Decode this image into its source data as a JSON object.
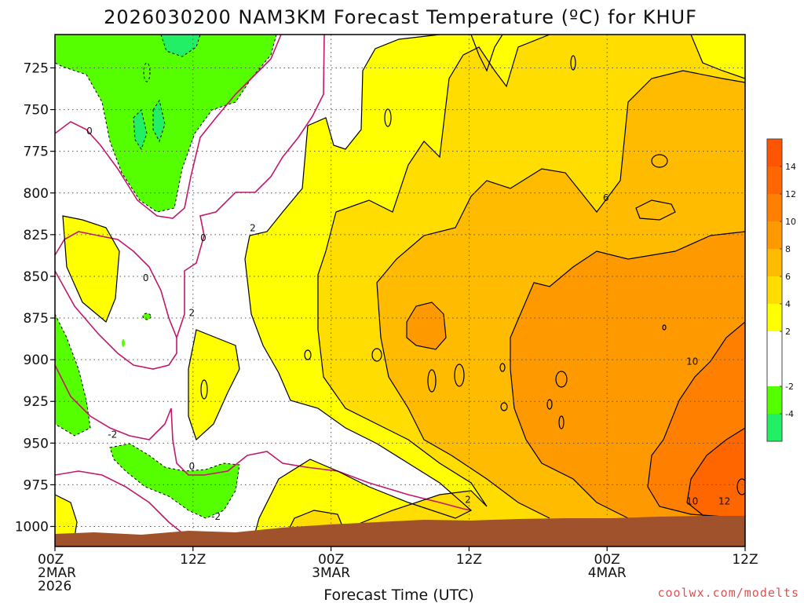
{
  "chart_data": {
    "type": "heatmap",
    "title": "2026030200 NAM3KM Forecast Temperature (ºC) for KHUF",
    "xlabel": "Forecast Time (UTC)",
    "ylabel": "",
    "credit": "coolwx.com/modelts",
    "x_range_hours": [
      0,
      60
    ],
    "y_range_hpa": [
      1012,
      705
    ],
    "y_ticks": [
      {
        "value": 725,
        "label": "725"
      },
      {
        "value": 750,
        "label": "750"
      },
      {
        "value": 775,
        "label": "775"
      },
      {
        "value": 800,
        "label": "800"
      },
      {
        "value": 825,
        "label": "825"
      },
      {
        "value": 850,
        "label": "850"
      },
      {
        "value": 875,
        "label": "875"
      },
      {
        "value": 900,
        "label": "900"
      },
      {
        "value": 925,
        "label": "925"
      },
      {
        "value": 950,
        "label": "950"
      },
      {
        "value": 975,
        "label": "975"
      },
      {
        "value": 1000,
        "label": "1000"
      }
    ],
    "x_ticks": [
      {
        "hour": 0,
        "lines": [
          "00Z",
          "2MAR",
          "2026"
        ]
      },
      {
        "hour": 12,
        "lines": [
          "12Z"
        ]
      },
      {
        "hour": 24,
        "lines": [
          "00Z",
          "3MAR"
        ]
      },
      {
        "hour": 36,
        "lines": [
          "12Z"
        ]
      },
      {
        "hour": 48,
        "lines": [
          "00Z",
          "4MAR"
        ]
      },
      {
        "hour": 60,
        "lines": [
          "12Z"
        ]
      }
    ],
    "grid": true,
    "colorbar": {
      "placement": "right",
      "bins": [
        {
          "from": -6,
          "to": -4,
          "color": "#22ee66"
        },
        {
          "from": -4,
          "to": -2,
          "color": "#55ff00"
        },
        {
          "from": -2,
          "to": 2,
          "color": "#ffffff"
        },
        {
          "from": 2,
          "to": 4,
          "color": "#ffff00"
        },
        {
          "from": 4,
          "to": 6,
          "color": "#ffdd00"
        },
        {
          "from": 6,
          "to": 8,
          "color": "#ffbb00"
        },
        {
          "from": 8,
          "to": 10,
          "color": "#ff9900"
        },
        {
          "from": 10,
          "to": 12,
          "color": "#ff8000"
        },
        {
          "from": 12,
          "to": 14,
          "color": "#ff6600"
        },
        {
          "from": 14,
          "to": 16,
          "color": "#ff5500"
        }
      ],
      "tick_labels": [
        "-4",
        "-2",
        "2",
        "4",
        "6",
        "8",
        "10",
        "12",
        "14"
      ]
    },
    "terrain_color": "#a0522d",
    "contour_labels": [
      {
        "text": "0",
        "hour": 3.0,
        "hpa": 763
      },
      {
        "text": "0",
        "hour": 12.9,
        "hpa": 827
      },
      {
        "text": "0",
        "hour": 7.9,
        "hpa": 851
      },
      {
        "text": "2",
        "hour": 17.2,
        "hpa": 821
      },
      {
        "text": "2",
        "hour": 11.9,
        "hpa": 872
      },
      {
        "text": "-2",
        "hour": 5.0,
        "hpa": 945
      },
      {
        "text": "0",
        "hour": 11.9,
        "hpa": 964
      },
      {
        "text": "-2",
        "hour": 14.0,
        "hpa": 994
      },
      {
        "text": "2",
        "hour": 35.9,
        "hpa": 984
      },
      {
        "text": "6",
        "hour": 47.9,
        "hpa": 803
      },
      {
        "text": "10",
        "hour": 55.4,
        "hpa": 901
      },
      {
        "text": "10",
        "hour": 55.4,
        "hpa": 985
      },
      {
        "text": "12",
        "hour": 58.2,
        "hpa": 985
      }
    ]
  }
}
